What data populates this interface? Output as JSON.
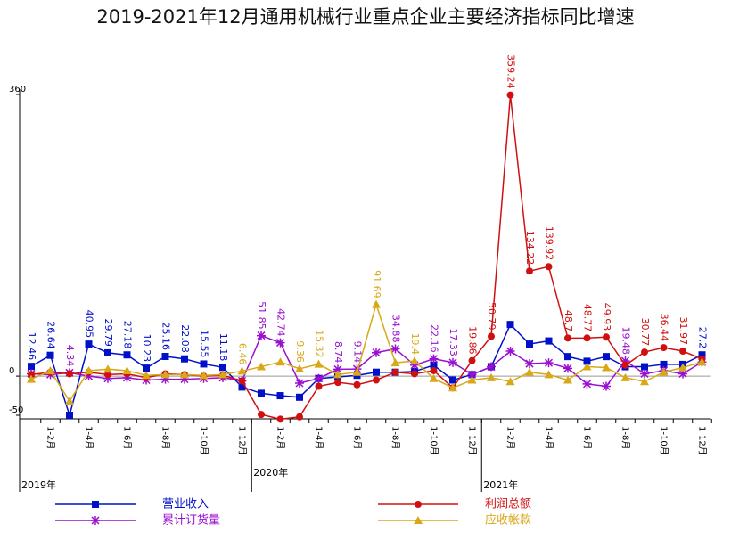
{
  "chart_data": {
    "type": "line",
    "title": "2019-2021年12月通用机械行业重点企业主要经济指标同比增速",
    "categories": [
      null,
      "1-2月",
      null,
      "1-4月",
      null,
      "1-6月",
      null,
      "1-8月",
      null,
      "1-10月",
      null,
      "1-12月",
      null,
      "1-2月",
      null,
      "1-4月",
      null,
      "1-6月",
      null,
      "1-8月",
      null,
      "1-10月",
      null,
      "1-12月",
      null,
      "1-2月",
      null,
      "1-4月",
      null,
      "1-6月",
      null,
      "1-8月",
      null,
      "1-10月",
      null,
      "1-12月"
    ],
    "years": [
      "2019年",
      "2020年",
      "2021年"
    ],
    "ylim": [
      -50,
      360
    ],
    "yticks": [
      -50,
      0,
      360
    ],
    "series": [
      {
        "name": "营业收入",
        "color": "#0010c8",
        "marker": "square",
        "values": [
          12.46,
          26.64,
          -50,
          40.95,
          29.79,
          27.18,
          10.23,
          25.16,
          22.08,
          15.55,
          11.18,
          -14,
          -22,
          -25,
          -27,
          -3,
          -1,
          1,
          5,
          5,
          6,
          14,
          -5,
          2,
          12,
          66,
          41,
          45,
          25,
          19,
          25,
          12,
          12,
          15,
          15,
          27.2
        ],
        "value_labels": [
          "12.46",
          "26.64",
          null,
          "40.95",
          "29.79",
          "27.18",
          "10.23",
          "25.16",
          "22.08",
          "15.55",
          "11.18",
          null,
          null,
          null,
          null,
          null,
          null,
          null,
          null,
          null,
          null,
          null,
          null,
          null,
          null,
          null,
          null,
          null,
          null,
          null,
          null,
          null,
          null,
          null,
          null,
          "27.2"
        ]
      },
      {
        "name": "累计订货量",
        "color": "#9a10d0",
        "marker": "star",
        "values": [
          3,
          2,
          4.34,
          0,
          -3,
          -2,
          -5,
          -4,
          -4,
          -3,
          -2,
          -6,
          51.85,
          42.74,
          -9,
          -3,
          8.74,
          9.14,
          30,
          34.88,
          14,
          22.16,
          17.33,
          2,
          12,
          32,
          16,
          17,
          10,
          -10,
          -13,
          19.48,
          3,
          7,
          3,
          18
        ],
        "value_labels": [
          null,
          null,
          "4.34",
          null,
          null,
          null,
          null,
          null,
          null,
          null,
          null,
          null,
          "51.85",
          "42.74",
          null,
          null,
          "8.74",
          "9.14",
          null,
          "34.88",
          null,
          "22.16",
          "17.33",
          null,
          null,
          null,
          null,
          null,
          null,
          null,
          null,
          "19.48",
          null,
          null,
          null,
          null
        ]
      },
      {
        "name": "利润总额",
        "color": "#d01010",
        "marker": "circle",
        "values": [
          2,
          5,
          3,
          5,
          2,
          3,
          -2,
          3,
          2,
          0,
          1,
          -6,
          -49,
          -55,
          -52,
          -13,
          -8,
          -11,
          -5,
          5,
          3,
          7,
          -15,
          19.86,
          50.79,
          359.24,
          134.22,
          139.92,
          48.7,
          48.77,
          49.93,
          14,
          30.77,
          36.44,
          31.97,
          22
        ],
        "value_labels": [
          null,
          null,
          null,
          null,
          null,
          null,
          null,
          null,
          null,
          null,
          null,
          null,
          null,
          null,
          null,
          null,
          null,
          null,
          null,
          null,
          null,
          null,
          null,
          "19.86",
          "50.79",
          "359.24",
          "134.22",
          "139.92",
          "48.7",
          "48.77",
          "49.93",
          null,
          "30.77",
          "36.44",
          "31.97",
          null
        ]
      },
      {
        "name": "应收帐款",
        "color": "#d8a818",
        "marker": "triangle",
        "values": [
          -4,
          7,
          -32,
          7,
          9,
          7,
          1,
          2,
          2,
          1,
          2,
          6.46,
          12,
          18,
          9.36,
          15.32,
          2,
          5,
          91.69,
          17,
          19.4,
          -3,
          -15,
          -5,
          -2,
          -7,
          5,
          2,
          -5,
          12,
          11,
          -2,
          -7,
          5,
          11,
          18
        ],
        "value_labels": [
          null,
          null,
          null,
          null,
          null,
          null,
          null,
          null,
          null,
          null,
          null,
          "6.46",
          null,
          null,
          "9.36",
          "15.32",
          null,
          null,
          "91.69",
          null,
          "19.4",
          null,
          null,
          null,
          null,
          null,
          null,
          null,
          null,
          null,
          null,
          null,
          null,
          null,
          null,
          null
        ]
      }
    ]
  }
}
